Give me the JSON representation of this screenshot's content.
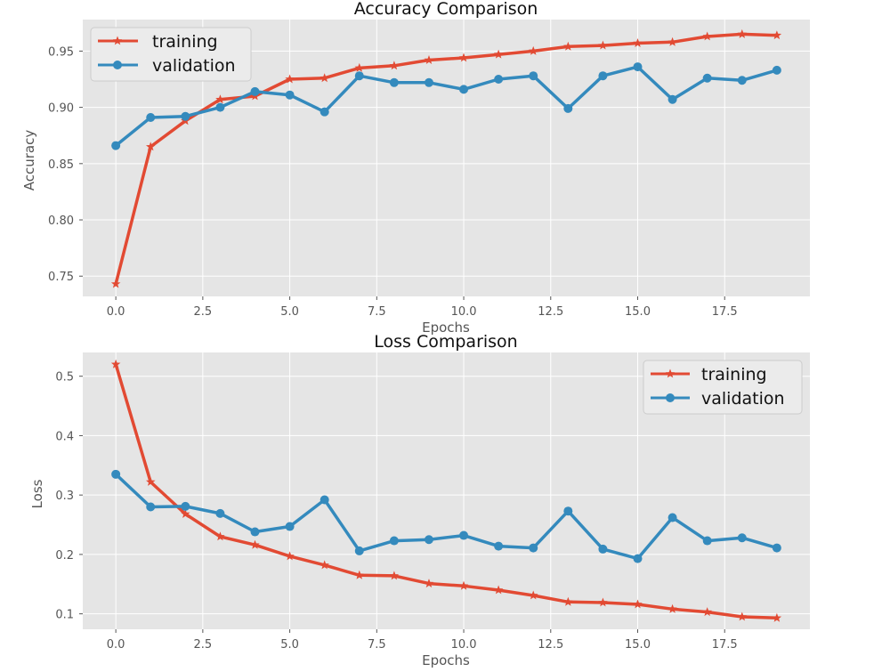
{
  "chart_data": [
    {
      "type": "line",
      "title": "Accuracy Comparison",
      "xlabel": "Epochs",
      "ylabel": "Accuracy",
      "xlim": [
        -0.95,
        19.95
      ],
      "ylim": [
        0.732,
        0.978
      ],
      "xticks": [
        0.0,
        2.5,
        5.0,
        7.5,
        10.0,
        12.5,
        15.0,
        17.5
      ],
      "xtick_labels": [
        "0.0",
        "2.5",
        "5.0",
        "7.5",
        "10.0",
        "12.5",
        "15.0",
        "17.5"
      ],
      "yticks": [
        0.75,
        0.8,
        0.85,
        0.9,
        0.95
      ],
      "ytick_labels": [
        "0.75",
        "0.80",
        "0.85",
        "0.90",
        "0.95"
      ],
      "grid": true,
      "legend_position": "top-left",
      "x": [
        0,
        1,
        2,
        3,
        4,
        5,
        6,
        7,
        8,
        9,
        10,
        11,
        12,
        13,
        14,
        15,
        16,
        17,
        18,
        19
      ],
      "series": [
        {
          "name": "training",
          "color": "#E24A33",
          "marker": "star",
          "values": [
            0.743,
            0.865,
            0.888,
            0.907,
            0.91,
            0.925,
            0.926,
            0.935,
            0.937,
            0.942,
            0.944,
            0.947,
            0.95,
            0.954,
            0.955,
            0.957,
            0.958,
            0.963,
            0.965,
            0.964
          ]
        },
        {
          "name": "validation",
          "color": "#348ABD",
          "marker": "circle",
          "values": [
            0.866,
            0.891,
            0.892,
            0.9,
            0.914,
            0.911,
            0.896,
            0.928,
            0.922,
            0.922,
            0.916,
            0.925,
            0.928,
            0.899,
            0.928,
            0.936,
            0.907,
            0.926,
            0.924,
            0.933
          ]
        }
      ]
    },
    {
      "type": "line",
      "title": "Loss Comparison",
      "xlabel": "Epochs",
      "ylabel": "Loss",
      "xlim": [
        -0.95,
        19.95
      ],
      "ylim": [
        0.074,
        0.54
      ],
      "xticks": [
        0.0,
        2.5,
        5.0,
        7.5,
        10.0,
        12.5,
        15.0,
        17.5
      ],
      "xtick_labels": [
        "0.0",
        "2.5",
        "5.0",
        "7.5",
        "10.0",
        "12.5",
        "15.0",
        "17.5"
      ],
      "yticks": [
        0.1,
        0.2,
        0.3,
        0.4,
        0.5
      ],
      "ytick_labels": [
        "0.1",
        "0.2",
        "0.3",
        "0.4",
        "0.5"
      ],
      "grid": true,
      "legend_position": "top-right",
      "x": [
        0,
        1,
        2,
        3,
        4,
        5,
        6,
        7,
        8,
        9,
        10,
        11,
        12,
        13,
        14,
        15,
        16,
        17,
        18,
        19
      ],
      "series": [
        {
          "name": "training",
          "color": "#E24A33",
          "marker": "star",
          "values": [
            0.52,
            0.322,
            0.268,
            0.23,
            0.216,
            0.197,
            0.182,
            0.165,
            0.164,
            0.151,
            0.147,
            0.14,
            0.131,
            0.12,
            0.119,
            0.116,
            0.108,
            0.103,
            0.095,
            0.093
          ]
        },
        {
          "name": "validation",
          "color": "#348ABD",
          "marker": "circle",
          "values": [
            0.335,
            0.28,
            0.281,
            0.269,
            0.238,
            0.247,
            0.292,
            0.206,
            0.223,
            0.225,
            0.232,
            0.214,
            0.211,
            0.273,
            0.209,
            0.193,
            0.262,
            0.223,
            0.228,
            0.211
          ]
        }
      ]
    }
  ]
}
